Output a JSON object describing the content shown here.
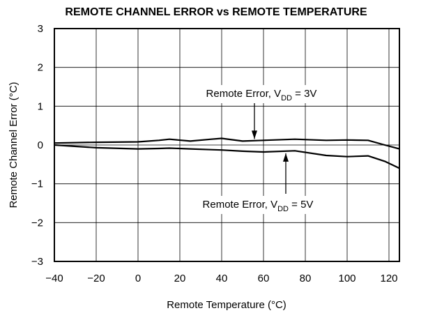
{
  "chart_data": {
    "type": "line",
    "title": "REMOTE CHANNEL ERROR vs REMOTE TEMPERATURE",
    "xlabel": "Remote Temperature (°C)",
    "ylabel": "Remote Channel Error (°C)",
    "x": [
      -40,
      -20,
      0,
      10,
      15,
      25,
      35,
      40,
      50,
      60,
      75,
      90,
      100,
      110,
      118,
      125
    ],
    "series": [
      {
        "name": "Remote Error, VDD = 3V",
        "color": "#000000",
        "values": [
          0.05,
          0.07,
          0.08,
          0.12,
          0.15,
          0.1,
          0.15,
          0.17,
          0.1,
          0.12,
          0.15,
          0.12,
          0.13,
          0.12,
          0.0,
          -0.1
        ]
      },
      {
        "name": "Remote Error, VDD = 5V",
        "color": "#000000",
        "values": [
          0.0,
          -0.07,
          -0.1,
          -0.09,
          -0.08,
          -0.1,
          -0.12,
          -0.13,
          -0.16,
          -0.18,
          -0.15,
          -0.27,
          -0.3,
          -0.28,
          -0.42,
          -0.6
        ]
      }
    ],
    "annotations": [
      {
        "text": "Remote Error, V",
        "sub": "DD",
        "tail": " = 3V"
      },
      {
        "text": "Remote Error, V",
        "sub": "DD",
        "tail": " = 5V"
      }
    ],
    "xlim": [
      -40,
      125
    ],
    "xticks": [
      {
        "value": -40,
        "label": "−40"
      },
      {
        "value": -20,
        "label": "−20"
      },
      0,
      20,
      40,
      60,
      80,
      100,
      120
    ],
    "ylim": [
      -3,
      3
    ],
    "yticks": [
      {
        "value": -3,
        "label": "−3"
      },
      {
        "value": -2,
        "label": "−2"
      },
      {
        "value": -1,
        "label": "−1"
      },
      0,
      1,
      2,
      3
    ],
    "grid": true
  }
}
